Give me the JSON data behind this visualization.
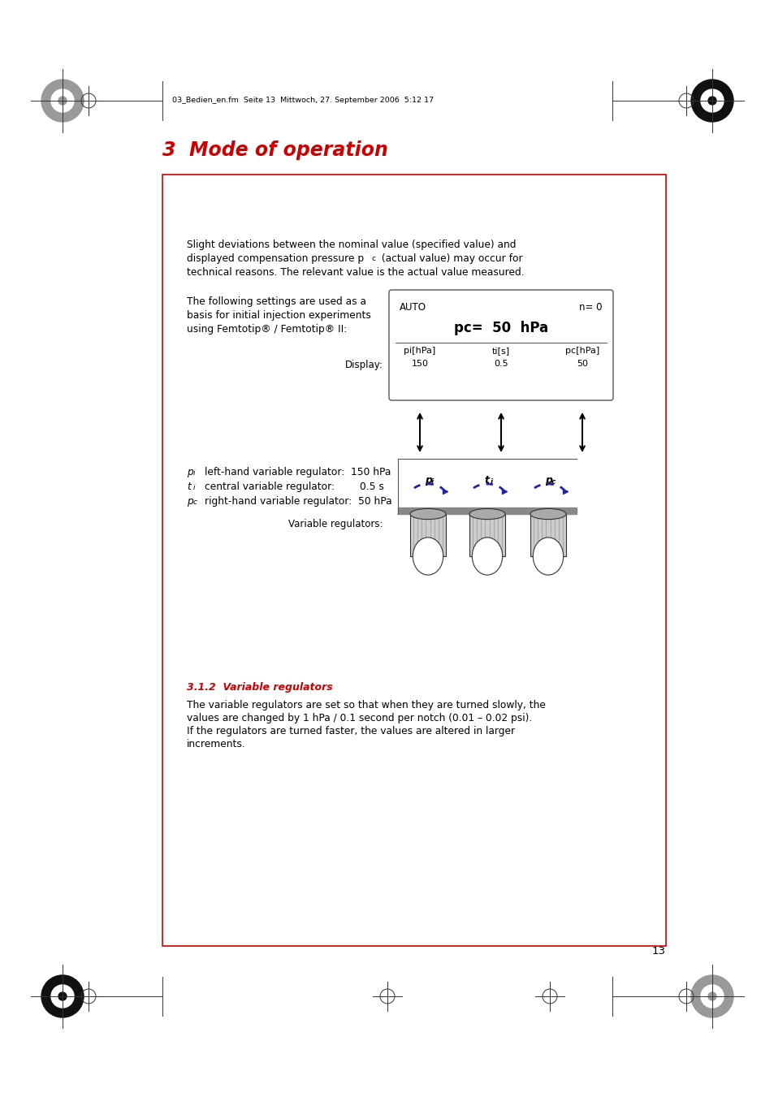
{
  "page_bg": "#ffffff",
  "header_text": "03_Bedien_en.fm  Seite 13  Mittwoch, 27. September 2006  5:12 17",
  "chapter_title": "3  Mode of operation",
  "chapter_title_color": "#cc0000",
  "box_border_color": "#cc0000",
  "para1_line1": "Slight deviations between the nominal value (specified value) and",
  "para1_line2": "displayed compensation pressure p",
  "para1_line2b": "c",
  "para1_line2c": " (actual value) may occur for",
  "para1_line3": "technical reasons. The relevant value is the actual value measured.",
  "para2_line1": "The following settings are used as a",
  "para2_line2": "basis for initial injection experiments",
  "para2_line3": "using Femtotip® / Femtotip® II:",
  "display_label": "Display:",
  "display_auto": "AUTO",
  "display_n": "n= 0",
  "display_pc": "pc=  50  hPa",
  "display_col1_label": "pi[hPa]",
  "display_col1_val": "150",
  "display_col2_label": "ti[s]",
  "display_col2_val": "0.5",
  "display_col3_label": "pc[hPa]",
  "display_col3_val": "50",
  "reg_pi_label": "p",
  "reg_pi_sub": "i",
  "reg_pi_text": "left-hand variable regulator:  150 hPa",
  "reg_ti_label": "t",
  "reg_ti_sub": "i",
  "reg_ti_text": "central variable regulator:        0.5 s",
  "reg_pc_label": "p",
  "reg_pc_sub": "c",
  "reg_pc_text": "right-hand variable regulator:  50 hPa",
  "var_reg_label": "Variable regulators:",
  "knob_labels": [
    "p",
    "t",
    "p"
  ],
  "knob_subs": [
    "i",
    "i",
    "c"
  ],
  "section_title": "3.1.2  Variable regulators",
  "section_title_color": "#cc0000",
  "section_para_line1": "The variable regulators are set so that when they are turned slowly, the",
  "section_para_line2": "values are changed by 1 hPa / 0.1 second per notch (0.01 – 0.02 psi).",
  "section_para_line3": "If the regulators are turned faster, the values are altered in larger",
  "section_para_line4": "increments.",
  "page_number": "13"
}
